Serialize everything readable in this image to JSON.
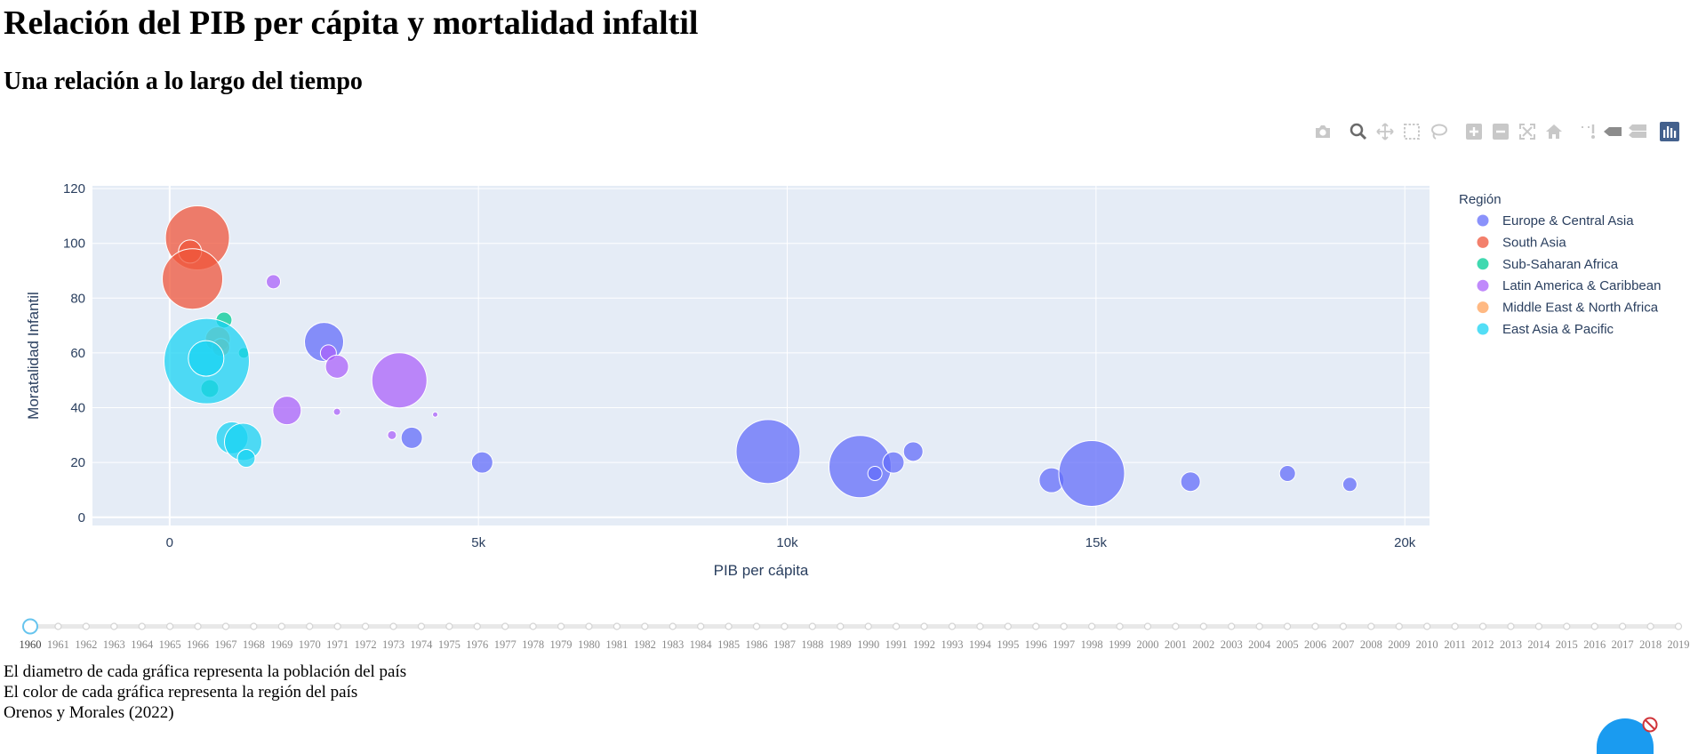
{
  "page": {
    "title": "Relación del PIB per cápita y mortalidad infaltil",
    "subtitle": "Una relación a lo largo del tiempo"
  },
  "modebar": {
    "icons": [
      "camera-icon",
      "zoom-icon",
      "pan-icon",
      "box-select-icon",
      "lasso-icon",
      "zoom-in-icon",
      "zoom-out-icon",
      "autoscale-icon",
      "reset-axes-icon",
      "spike-lines-icon",
      "hover-closest-icon",
      "hover-compare-icon",
      "plotly-logo-icon"
    ]
  },
  "chart_data": {
    "type": "scatter",
    "bubble": true,
    "xlabel": "PIB per cápita",
    "ylabel": "Moratalidad Infantil",
    "xlim": [
      -1250,
      20400
    ],
    "ylim": [
      -3,
      121
    ],
    "x_ticks": [
      0,
      5000,
      10000,
      15000,
      20000
    ],
    "x_tick_labels": [
      "0",
      "5k",
      "10k",
      "15k",
      "20k"
    ],
    "y_ticks": [
      0,
      20,
      40,
      60,
      80,
      100,
      120
    ],
    "y_tick_labels": [
      "0",
      "20",
      "40",
      "60",
      "80",
      "100",
      "120"
    ],
    "grid": true,
    "legend": {
      "title": "Región",
      "position": "right"
    },
    "series": [
      {
        "name": "Europe & Central Asia",
        "color": "#636efa",
        "points": [
          {
            "x": 2500,
            "y": 64,
            "size": 22
          },
          {
            "x": 3920,
            "y": 29,
            "size": 12
          },
          {
            "x": 5060,
            "y": 20,
            "size": 12
          },
          {
            "x": 9690,
            "y": 24,
            "size": 36
          },
          {
            "x": 11180,
            "y": 18.5,
            "size": 35
          },
          {
            "x": 11420,
            "y": 16,
            "size": 8
          },
          {
            "x": 11720,
            "y": 20,
            "size": 12
          },
          {
            "x": 12040,
            "y": 24,
            "size": 11
          },
          {
            "x": 14280,
            "y": 13.5,
            "size": 14
          },
          {
            "x": 14930,
            "y": 16,
            "size": 37
          },
          {
            "x": 16530,
            "y": 13,
            "size": 11
          },
          {
            "x": 18100,
            "y": 16,
            "size": 9
          },
          {
            "x": 19110,
            "y": 12,
            "size": 8
          }
        ]
      },
      {
        "name": "South Asia",
        "color": "#ef553b",
        "points": [
          {
            "x": 450,
            "y": 102,
            "size": 36
          },
          {
            "x": 330,
            "y": 97,
            "size": 13
          },
          {
            "x": 370,
            "y": 87,
            "size": 34
          }
        ]
      },
      {
        "name": "Sub-Saharan Africa",
        "color": "#00cc96",
        "points": [
          {
            "x": 880,
            "y": 72,
            "size": 9
          },
          {
            "x": 1200,
            "y": 60,
            "size": 6
          },
          {
            "x": 650,
            "y": 47,
            "size": 10
          }
        ]
      },
      {
        "name": "Latin America & Caribbean",
        "color": "#ab63fa",
        "points": [
          {
            "x": 1680,
            "y": 86,
            "size": 8
          },
          {
            "x": 2570,
            "y": 60,
            "size": 9
          },
          {
            "x": 2710,
            "y": 55,
            "size": 13
          },
          {
            "x": 3720,
            "y": 50,
            "size": 31
          },
          {
            "x": 1900,
            "y": 39,
            "size": 16
          },
          {
            "x": 2710,
            "y": 38.5,
            "size": 4
          },
          {
            "x": 4300,
            "y": 37.5,
            "size": 3
          },
          {
            "x": 3600,
            "y": 30,
            "size": 5
          }
        ]
      },
      {
        "name": "Middle East & North Africa",
        "color": "#ffa15a",
        "points": [
          {
            "x": 780,
            "y": 65,
            "size": 14
          },
          {
            "x": 830,
            "y": 62,
            "size": 10
          }
        ]
      },
      {
        "name": "East Asia & Pacific",
        "color": "#19d3f3",
        "points": [
          {
            "x": 600,
            "y": 57,
            "size": 48
          },
          {
            "x": 590,
            "y": 58,
            "size": 20
          },
          {
            "x": 1010,
            "y": 29,
            "size": 18
          },
          {
            "x": 1190,
            "y": 27.5,
            "size": 21
          },
          {
            "x": 1240,
            "y": 21.5,
            "size": 10
          }
        ]
      }
    ]
  },
  "slider": {
    "years": [
      "1960",
      "1961",
      "1962",
      "1963",
      "1964",
      "1965",
      "1966",
      "1967",
      "1968",
      "1969",
      "1970",
      "1971",
      "1972",
      "1973",
      "1974",
      "1975",
      "1976",
      "1977",
      "1978",
      "1979",
      "1980",
      "1981",
      "1982",
      "1983",
      "1984",
      "1985",
      "1986",
      "1987",
      "1988",
      "1989",
      "1990",
      "1991",
      "1992",
      "1993",
      "1994",
      "1995",
      "1996",
      "1997",
      "1998",
      "1999",
      "2000",
      "2001",
      "2002",
      "2003",
      "2004",
      "2005",
      "2006",
      "2007",
      "2008",
      "2009",
      "2010",
      "2011",
      "2012",
      "2013",
      "2014",
      "2015",
      "2016",
      "2017",
      "2018",
      "2019"
    ],
    "active_index": 0
  },
  "footer": {
    "line1": "El diametro de cada gráfica representa la población del país",
    "line2": "El color de cada gráfica representa la región del país",
    "line3": "Orenos y Morales (2022)"
  }
}
